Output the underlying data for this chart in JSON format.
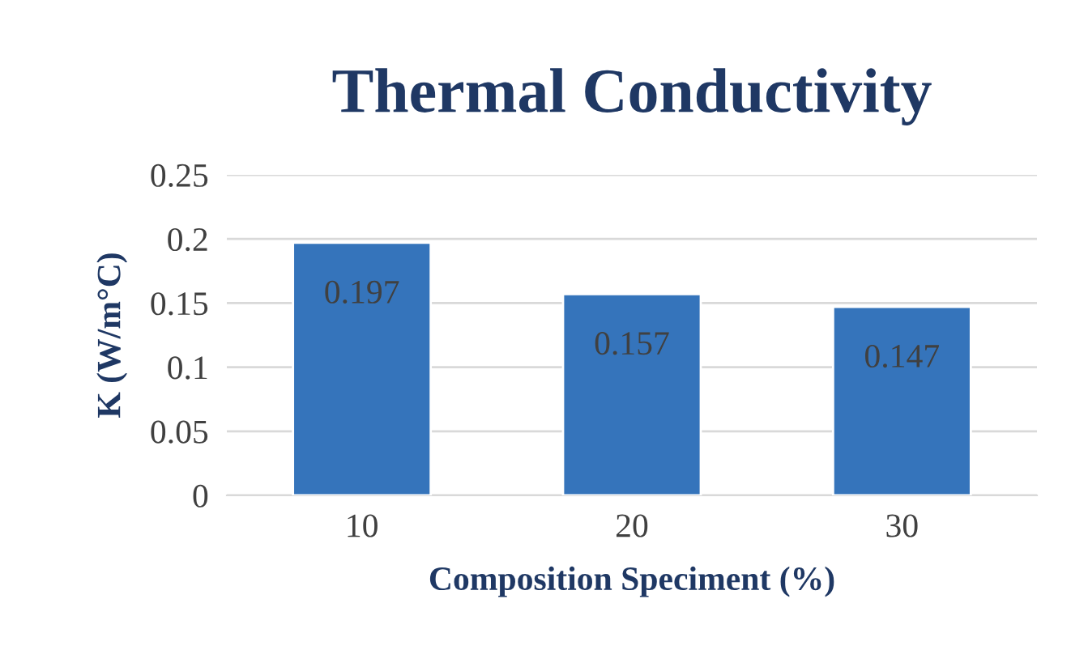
{
  "chart_data": {
    "type": "bar",
    "title": "Thermal Conductivity",
    "xlabel": "Composition Speciment (%)",
    "ylabel": "K (W/m°C)",
    "categories": [
      "10",
      "20",
      "30"
    ],
    "values": [
      0.197,
      0.157,
      0.147
    ],
    "color": "#3574bb",
    "ylim": [
      0,
      0.25
    ],
    "yticks": [
      0,
      0.05,
      0.1,
      0.15,
      0.2,
      0.25
    ],
    "grid": "y",
    "data_labels": true
  }
}
